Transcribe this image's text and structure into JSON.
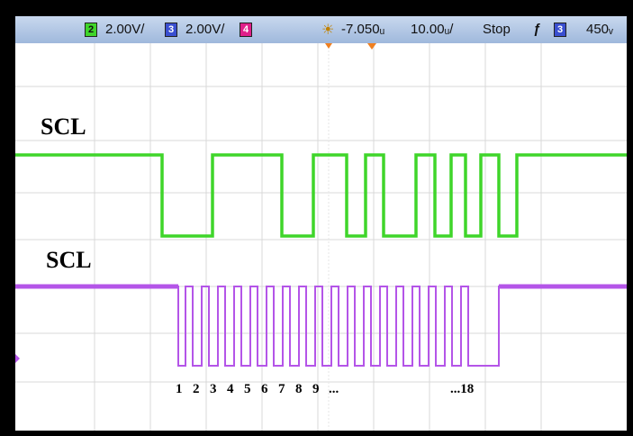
{
  "status_bar": {
    "ch2_number": "2",
    "ch2_scale": "2.00V/",
    "ch3_number": "3",
    "ch3_scale": "2.00V/",
    "ch4_number": "4",
    "time_offset": "-7.050ᵤ",
    "time_scale": "10.00ᵤ/",
    "run_state": "Stop",
    "trigger_symbol": "ƒ",
    "trigger_source": "3",
    "trigger_level": "450ᵥ"
  },
  "traces": {
    "top_label": "SCL",
    "bottom_label": "SCL",
    "pulse_labels": [
      "1",
      "2",
      "3",
      "4",
      "5",
      "6",
      "7",
      "8",
      "9",
      "...",
      "...18"
    ]
  },
  "colors": {
    "ch2_green": "#3fd52a",
    "ch3_purple": "#b455e8",
    "ch4_magenta": "#e0208a",
    "grid": "#d9d9d9"
  }
}
